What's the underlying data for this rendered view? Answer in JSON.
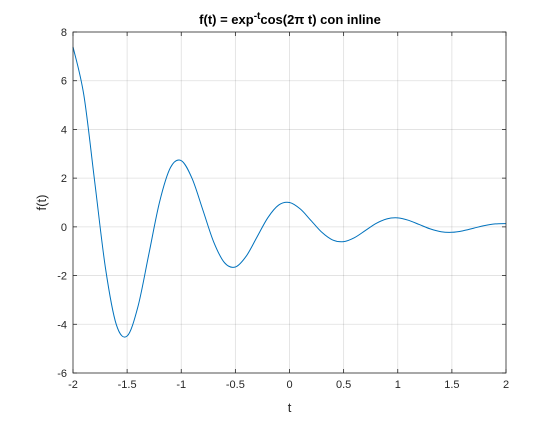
{
  "chart_data": {
    "type": "line",
    "title": "f(t) = exp",
    "title_superscript": "-t",
    "title_suffix": "cos(2π t) con inline",
    "xlabel": "t",
    "ylabel": "f(t)",
    "xlim": [
      -2,
      2
    ],
    "ylim": [
      -6,
      8
    ],
    "xticks": [
      -2,
      -1.5,
      -1,
      -0.5,
      0,
      0.5,
      1,
      1.5,
      2
    ],
    "xtick_labels": [
      "-2",
      "-1.5",
      "-1",
      "-0.5",
      "0",
      "0.5",
      "1",
      "1.5",
      "2"
    ],
    "yticks": [
      -6,
      -4,
      -2,
      0,
      2,
      4,
      6,
      8
    ],
    "ytick_labels": [
      "-6",
      "-4",
      "-2",
      "0",
      "2",
      "4",
      "6",
      "8"
    ],
    "grid": true,
    "line_color": "#0072BD",
    "series": [
      {
        "x": [
          -2.0,
          -1.9,
          -1.8,
          -1.7,
          -1.6,
          -1.5,
          -1.4,
          -1.3,
          -1.2,
          -1.1,
          -1.0,
          -0.9,
          -0.8,
          -0.7,
          -0.6,
          -0.5,
          -0.4,
          -0.3,
          -0.2,
          -0.1,
          0.0,
          0.1,
          0.2,
          0.3,
          0.4,
          0.5,
          0.6,
          0.7,
          0.8,
          0.9,
          1.0,
          1.1,
          1.2,
          1.3,
          1.4,
          1.5,
          1.6,
          1.7,
          1.8,
          1.9,
          2.0
        ],
        "y": [
          7.389,
          5.414,
          1.871,
          -1.694,
          -4.012,
          -4.482,
          -3.274,
          -1.134,
          1.026,
          2.43,
          2.718,
          1.986,
          0.688,
          -0.622,
          -1.474,
          -1.649,
          -1.205,
          -0.417,
          0.377,
          0.894,
          1.0,
          0.731,
          0.253,
          -0.229,
          -0.542,
          -0.607,
          -0.443,
          -0.153,
          0.139,
          0.329,
          0.368,
          0.269,
          0.093,
          -0.084,
          -0.2,
          -0.223,
          -0.163,
          -0.056,
          0.051,
          0.121,
          0.135
        ]
      }
    ]
  }
}
